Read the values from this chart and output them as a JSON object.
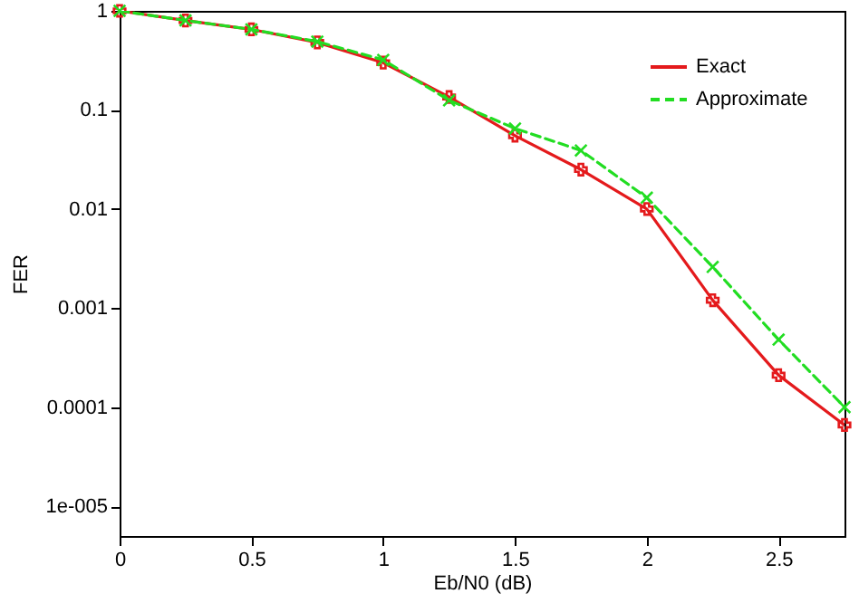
{
  "chart_data": {
    "type": "line",
    "xlabel": "Eb/N0 (dB)",
    "ylabel": "FER",
    "log": "y",
    "xlim": [
      0,
      2.75
    ],
    "xticks": [
      0,
      0.5,
      1,
      1.5,
      2,
      2.5
    ],
    "ylim": [
      5e-06,
      1
    ],
    "yticks": [
      {
        "value": 1e-05,
        "label": "1e-005"
      },
      0.0001,
      0.001,
      0.01,
      0.1,
      1
    ],
    "x": [
      0,
      0.25,
      0.5,
      0.75,
      1,
      1.25,
      1.5,
      1.75,
      2,
      2.25,
      2.5,
      2.75
    ],
    "series": [
      {
        "name": "Exact",
        "color": "#e41a1c",
        "marker": "cross",
        "line_style": "solid",
        "values": [
          1,
          0.8,
          0.65,
          0.48,
          0.3,
          0.135,
          0.055,
          0.025,
          0.01,
          0.0012,
          0.00021,
          6.6e-05
        ]
      },
      {
        "name": "Approximate",
        "color": "#22dd22",
        "marker": "x",
        "line_style": "dashed",
        "values": [
          1,
          0.8,
          0.65,
          0.49,
          0.32,
          0.125,
          0.065,
          0.039,
          0.013,
          0.0026,
          0.00048,
          0.0001
        ]
      }
    ],
    "grid": false,
    "legend": "top right"
  }
}
